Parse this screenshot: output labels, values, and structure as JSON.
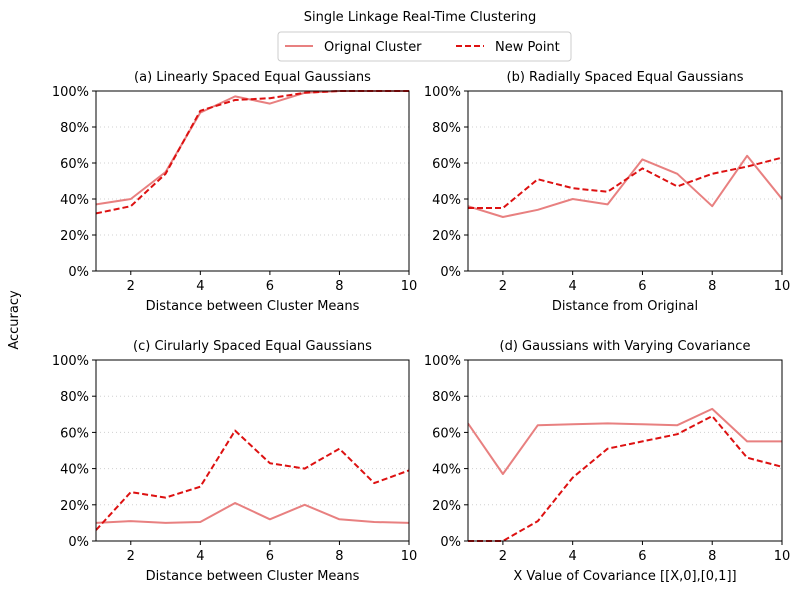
{
  "figure": {
    "title": "Single Linkage Real-Time Clustering",
    "ylabel": "Accuracy"
  },
  "legend": {
    "placement": "top-center",
    "entries": [
      {
        "label": "Orignal Cluster",
        "color": "#e88080",
        "style": "solid"
      },
      {
        "label": "New Point",
        "color": "#dd1111",
        "style": "dashed"
      }
    ]
  },
  "chart_data": [
    {
      "type": "line",
      "title": "(a) Linearly Spaced Equal Gaussians",
      "xlabel": "Distance between Cluster Means",
      "xlim": [
        1,
        10
      ],
      "ylim": [
        0,
        100
      ],
      "xticks": [
        "2",
        "4",
        "6",
        "8",
        "10"
      ],
      "yticks": [
        "0%",
        "20%",
        "40%",
        "60%",
        "80%",
        "100%"
      ],
      "grid": "y-dotted",
      "x": [
        1,
        2,
        3,
        4,
        5,
        6,
        7,
        8,
        9,
        10
      ],
      "series": [
        {
          "name": "Orignal Cluster",
          "values": [
            37,
            40,
            55,
            88,
            97,
            93,
            99,
            100,
            100,
            100
          ]
        },
        {
          "name": "New Point",
          "values": [
            32,
            36,
            54,
            89,
            95,
            96,
            99,
            100,
            100,
            100
          ]
        }
      ]
    },
    {
      "type": "line",
      "title": "(b) Radially Spaced Equal Gaussians",
      "xlabel": "Distance from Original",
      "xlim": [
        1,
        10
      ],
      "ylim": [
        0,
        100
      ],
      "xticks": [
        "2",
        "4",
        "6",
        "8",
        "10"
      ],
      "yticks": [
        "0%",
        "20%",
        "40%",
        "60%",
        "80%",
        "100%"
      ],
      "grid": "y-dotted",
      "x": [
        1,
        2,
        3,
        4,
        5,
        6,
        7,
        8,
        9,
        10
      ],
      "series": [
        {
          "name": "Orignal Cluster",
          "values": [
            36,
            30,
            34,
            40,
            37,
            62,
            54,
            36,
            64,
            40
          ]
        },
        {
          "name": "New Point",
          "values": [
            35,
            35,
            51,
            46,
            44,
            57,
            47,
            54,
            58,
            63
          ]
        }
      ]
    },
    {
      "type": "line",
      "title": "(c) Cirularly Spaced Equal Gaussians",
      "xlabel": "Distance between Cluster Means",
      "xlim": [
        1,
        10
      ],
      "ylim": [
        0,
        100
      ],
      "xticks": [
        "2",
        "4",
        "6",
        "8",
        "10"
      ],
      "yticks": [
        "0%",
        "20%",
        "40%",
        "60%",
        "80%",
        "100%"
      ],
      "grid": "y-dotted",
      "x": [
        1,
        2,
        3,
        4,
        5,
        6,
        7,
        8,
        9,
        10
      ],
      "series": [
        {
          "name": "Orignal Cluster",
          "values": [
            10,
            11,
            10,
            10.5,
            21,
            12,
            20,
            12,
            10.5,
            10
          ]
        },
        {
          "name": "New Point",
          "values": [
            6,
            27,
            24,
            30,
            61,
            43,
            40,
            51,
            32,
            39
          ]
        }
      ]
    },
    {
      "type": "line",
      "title": "(d) Gaussians with Varying Covariance",
      "xlabel": "X Value of Covariance [[X,0],[0,1]]",
      "xlim": [
        1,
        10
      ],
      "ylim": [
        0,
        100
      ],
      "xticks": [
        "2",
        "4",
        "6",
        "8",
        "10"
      ],
      "yticks": [
        "0%",
        "20%",
        "40%",
        "60%",
        "80%",
        "100%"
      ],
      "grid": "y-dotted",
      "x": [
        1,
        2,
        3,
        4,
        5,
        6,
        7,
        8,
        9,
        10
      ],
      "series": [
        {
          "name": "Orignal Cluster",
          "values": [
            65,
            37,
            64,
            64.5,
            65,
            64.5,
            64,
            73,
            55,
            55
          ]
        },
        {
          "name": "New Point",
          "values": [
            0,
            0,
            11,
            35,
            51,
            55,
            59,
            69,
            46,
            41
          ]
        }
      ]
    }
  ]
}
